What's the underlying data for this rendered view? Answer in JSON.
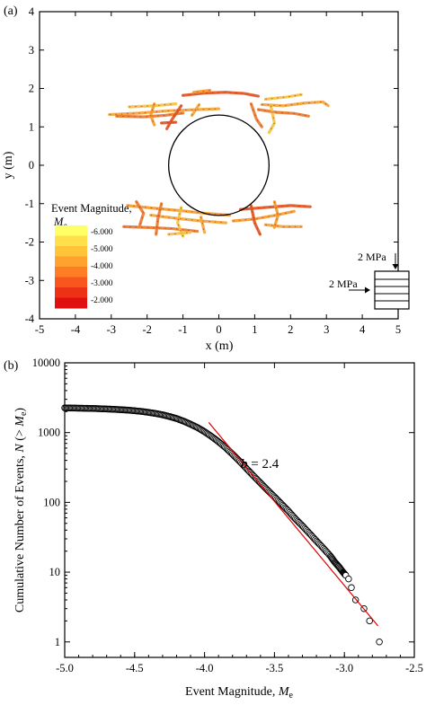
{
  "chart_data": [
    {
      "panel_label": "(a)",
      "type": "scatter",
      "xlabel": "x (m)",
      "ylabel": "y (m)",
      "xlim": [
        -5,
        5
      ],
      "ylim": [
        -4,
        4
      ],
      "xticks": [
        -5,
        -4,
        -3,
        -2,
        -1,
        0,
        1,
        2,
        3,
        4,
        5
      ],
      "yticks": [
        -4,
        -3,
        -2,
        -1,
        0,
        1,
        2,
        3,
        4
      ],
      "grid": false,
      "circle": {
        "center": [
          0,
          0
        ],
        "radius": 1.4
      },
      "colorbar": {
        "title": "Event Magnitude,",
        "title_symbol": "M",
        "title_subscript": "e",
        "labels": [
          "-6.000",
          "-5.000",
          "-4.000",
          "-3.000",
          "-2.000"
        ],
        "colors": [
          "#ffff66",
          "#ffe04a",
          "#ffc43a",
          "#ffa22e",
          "#ff7d24",
          "#f8561c",
          "#ec3116",
          "#e01010"
        ]
      },
      "inset": {
        "vertical_load": "2 MPa",
        "horizontal_load": "2 MPa"
      },
      "fractures": [
        [
          [
            -3.05,
            1.32
          ],
          [
            -2.2,
            1.36
          ],
          [
            -1.4,
            1.42
          ],
          [
            -0.6,
            1.45
          ],
          [
            0.0,
            1.47
          ]
        ],
        [
          [
            -2.85,
            1.28
          ],
          [
            -2.1,
            1.26
          ],
          [
            -1.5,
            1.3
          ],
          [
            -1.0,
            1.36
          ]
        ],
        [
          [
            -2.5,
            1.52
          ],
          [
            -1.8,
            1.55
          ],
          [
            -1.2,
            1.6
          ]
        ],
        [
          [
            -1.0,
            1.82
          ],
          [
            -0.4,
            1.88
          ],
          [
            0.2,
            1.9
          ],
          [
            0.7,
            1.87
          ],
          [
            1.1,
            1.8
          ]
        ],
        [
          [
            -0.25,
            1.95
          ],
          [
            -0.7,
            1.9
          ]
        ],
        [
          [
            1.2,
            1.58
          ],
          [
            1.8,
            1.55
          ],
          [
            2.4,
            1.62
          ],
          [
            2.9,
            1.65
          ],
          [
            3.05,
            1.55
          ]
        ],
        [
          [
            1.1,
            1.45
          ],
          [
            1.6,
            1.38
          ],
          [
            2.1,
            1.35
          ],
          [
            2.5,
            1.28
          ]
        ],
        [
          [
            1.3,
            1.72
          ],
          [
            1.9,
            1.78
          ],
          [
            2.3,
            1.84
          ]
        ],
        [
          [
            -1.05,
            1.55
          ],
          [
            -1.3,
            1.2
          ],
          [
            -1.45,
            0.95
          ]
        ],
        [
          [
            -1.8,
            1.6
          ],
          [
            -1.9,
            1.3
          ],
          [
            -1.8,
            1.05
          ]
        ],
        [
          [
            -0.55,
            1.58
          ],
          [
            -0.75,
            1.3
          ]
        ],
        [
          [
            0.9,
            1.6
          ],
          [
            1.05,
            1.2
          ],
          [
            1.2,
            1.0
          ]
        ],
        [
          [
            1.45,
            1.55
          ],
          [
            1.55,
            1.1
          ],
          [
            1.4,
            0.85
          ]
        ],
        [
          [
            -1.6,
            1.1
          ],
          [
            -1.2,
            1.12
          ]
        ],
        [
          [
            -2.55,
            -1.05
          ],
          [
            -1.8,
            -1.12
          ],
          [
            -1.1,
            -1.18
          ],
          [
            -0.4,
            -1.25
          ],
          [
            0.3,
            -1.3
          ]
        ],
        [
          [
            -1.9,
            -1.3
          ],
          [
            -1.2,
            -1.38
          ],
          [
            -0.5,
            -1.45
          ],
          [
            0.2,
            -1.5
          ]
        ],
        [
          [
            -2.65,
            -1.6
          ],
          [
            -2.0,
            -1.62
          ],
          [
            -1.3,
            -1.65
          ],
          [
            -0.6,
            -1.72
          ]
        ],
        [
          [
            -1.4,
            -1.8
          ],
          [
            -0.8,
            -1.75
          ]
        ],
        [
          [
            0.6,
            -1.15
          ],
          [
            1.3,
            -1.1
          ],
          [
            2.0,
            -1.05
          ],
          [
            2.55,
            -1.08
          ]
        ],
        [
          [
            0.4,
            -1.45
          ],
          [
            1.0,
            -1.4
          ],
          [
            1.6,
            -1.3
          ],
          [
            2.1,
            -1.2
          ]
        ],
        [
          [
            1.3,
            -1.55
          ],
          [
            1.8,
            -1.6
          ],
          [
            2.3,
            -1.6
          ]
        ],
        [
          [
            -1.6,
            -1.0
          ],
          [
            -1.7,
            -1.4
          ],
          [
            -1.75,
            -1.8
          ]
        ],
        [
          [
            -1.05,
            -1.1
          ],
          [
            -1.15,
            -1.5
          ],
          [
            -1.0,
            -1.85
          ]
        ],
        [
          [
            0.9,
            -1.05
          ],
          [
            1.0,
            -1.5
          ],
          [
            1.15,
            -1.8
          ]
        ],
        [
          [
            1.55,
            -0.95
          ],
          [
            1.65,
            -1.3
          ],
          [
            1.55,
            -1.62
          ]
        ],
        [
          [
            -0.5,
            -1.35
          ],
          [
            -0.4,
            -1.75
          ]
        ],
        [
          [
            -2.3,
            -0.95
          ],
          [
            -2.1,
            -1.25
          ],
          [
            -2.2,
            -1.55
          ]
        ]
      ]
    },
    {
      "panel_label": "(b)",
      "type": "scatter",
      "xlabel": "Event Magnitude,",
      "xlabel_symbol": "M",
      "xlabel_subscript": "e",
      "ylabel": "Cumulative Number of Events,",
      "ylabel_symbol": "N",
      "ylabel_paren_open": " (> ",
      "ylabel_paren_symbol": "M",
      "ylabel_paren_subscript": "e",
      "ylabel_paren_close": ")",
      "xlim": [
        -5.0,
        -2.5
      ],
      "ylim": [
        0.6,
        10000
      ],
      "yscale": "log",
      "xticks": [
        "-5.0",
        "-4.5",
        "-4.0",
        "-3.5",
        "-3.0",
        "-2.5"
      ],
      "yticks": [
        "1",
        "10",
        "100",
        "1000",
        "10000"
      ],
      "grid": false,
      "series": [
        {
          "points": [
            [
              -5.0,
              2260
            ],
            [
              -4.95,
              2250
            ],
            [
              -4.9,
              2240
            ],
            [
              -4.85,
              2230
            ],
            [
              -4.8,
              2220
            ],
            [
              -4.75,
              2200
            ],
            [
              -4.7,
              2180
            ],
            [
              -4.65,
              2160
            ],
            [
              -4.6,
              2130
            ],
            [
              -4.55,
              2100
            ],
            [
              -4.5,
              2060
            ],
            [
              -4.45,
              2010
            ],
            [
              -4.4,
              1950
            ],
            [
              -4.35,
              1880
            ],
            [
              -4.3,
              1800
            ],
            [
              -4.25,
              1700
            ],
            [
              -4.2,
              1590
            ],
            [
              -4.15,
              1460
            ],
            [
              -4.1,
              1320
            ],
            [
              -4.05,
              1180
            ],
            [
              -4.0,
              1030
            ],
            [
              -3.95,
              880
            ],
            [
              -3.9,
              740
            ],
            [
              -3.85,
              610
            ],
            [
              -3.8,
              490
            ],
            [
              -3.75,
              390
            ],
            [
              -3.7,
              305
            ],
            [
              -3.65,
              240
            ],
            [
              -3.6,
              190
            ],
            [
              -3.55,
              150
            ],
            [
              -3.5,
              120
            ],
            [
              -3.45,
              95
            ],
            [
              -3.4,
              75
            ],
            [
              -3.35,
              58
            ],
            [
              -3.3,
              46
            ],
            [
              -3.25,
              36
            ],
            [
              -3.2,
              28
            ],
            [
              -3.15,
              22
            ],
            [
              -3.1,
              17
            ],
            [
              -3.07,
              14
            ],
            [
              -3.04,
              12
            ],
            [
              -3.01,
              10
            ],
            [
              -2.99,
              9
            ],
            [
              -2.97,
              8
            ],
            [
              -2.95,
              6
            ],
            [
              -2.92,
              4
            ],
            [
              -2.86,
              3
            ],
            [
              -2.82,
              2
            ],
            [
              -2.75,
              1
            ]
          ]
        }
      ],
      "fit_line": {
        "x": [
          -3.97,
          -2.76
        ],
        "y": [
          1400,
          1.7
        ],
        "color": "#dd0000"
      },
      "annotation": {
        "symbol": "b",
        "text": " = 2.4"
      }
    }
  ]
}
